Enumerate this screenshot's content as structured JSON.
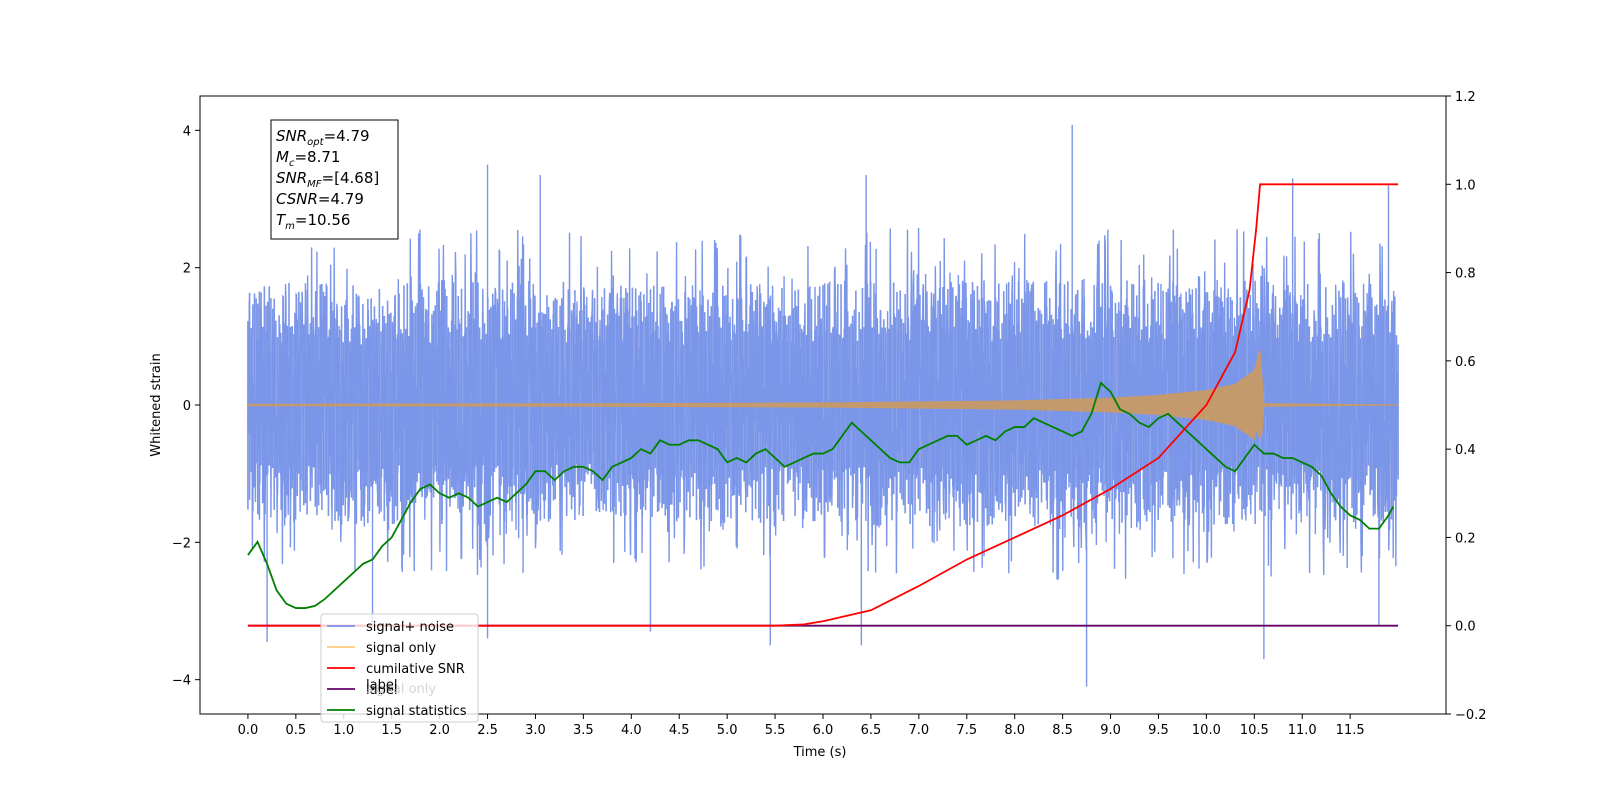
{
  "chart_data": {
    "type": "line",
    "xlabel": "Time (s)",
    "ylabel_left": "Whitened strain",
    "ylabel_right": "",
    "xlim": [
      -0.5,
      12.5
    ],
    "ylim_left": [
      -4.5,
      4.5
    ],
    "ylim_right": [
      -0.2,
      1.2
    ],
    "x_ticks": [
      0.0,
      0.5,
      1.0,
      1.5,
      2.0,
      2.5,
      3.0,
      3.5,
      4.0,
      4.5,
      5.0,
      5.5,
      6.0,
      6.5,
      7.0,
      7.5,
      8.0,
      8.5,
      9.0,
      9.5,
      10.0,
      10.5,
      11.0,
      11.5
    ],
    "x_tick_labels": [
      "0.0",
      "0.5",
      "1.0",
      "1.5",
      "2.0",
      "2.5",
      "3.0",
      "3.5",
      "4.0",
      "4.5",
      "5.0",
      "5.5",
      "6.0",
      "6.5",
      "7.0",
      "7.5",
      "8.0",
      "8.5",
      "9.0",
      "9.5",
      "10.0",
      "10.5",
      "11.0",
      "11.5"
    ],
    "y_left_ticks": [
      4,
      2,
      0,
      -2,
      -4
    ],
    "y_left_tick_labels": [
      "4",
      "2",
      "0",
      "−2",
      "−4"
    ],
    "y_right_ticks": [
      1.2,
      1.0,
      0.8,
      0.6,
      0.4,
      0.2,
      0.0,
      -0.2
    ],
    "y_right_tick_labels": [
      "1.2",
      "1.0",
      "0.8",
      "0.6",
      "0.4",
      "0.2",
      "0.0",
      "−0.2"
    ],
    "legend_position": "lower-left",
    "grid": false,
    "series": [
      {
        "name": "signal+ noise",
        "axis": "left",
        "color": "#7b96e8",
        "t_start": 0.0,
        "t_end": 12.0,
        "envelope_x": [
          0,
          1,
          2,
          3,
          4,
          5,
          6,
          7,
          8,
          9,
          10,
          10.5,
          11,
          12
        ],
        "envelope_high": [
          2.6,
          2.5,
          2.6,
          2.6,
          2.5,
          2.5,
          2.6,
          2.6,
          2.6,
          2.6,
          2.6,
          2.6,
          2.6,
          2.5
        ],
        "envelope_low": [
          -2.4,
          -2.5,
          -2.5,
          -2.5,
          -2.4,
          -2.5,
          -2.5,
          -2.6,
          -2.6,
          -2.6,
          -2.5,
          -2.5,
          -2.5,
          -2.5
        ],
        "spikes": [
          {
            "x": 0.2,
            "y": -3.45
          },
          {
            "x": 1.3,
            "y": -3.2
          },
          {
            "x": 2.5,
            "y": 3.5
          },
          {
            "x": 2.5,
            "y": -3.4
          },
          {
            "x": 3.05,
            "y": 3.35
          },
          {
            "x": 4.2,
            "y": -3.3
          },
          {
            "x": 5.45,
            "y": -3.5
          },
          {
            "x": 6.45,
            "y": 3.35
          },
          {
            "x": 6.4,
            "y": -3.5
          },
          {
            "x": 8.6,
            "y": 4.08
          },
          {
            "x": 8.75,
            "y": -4.1
          },
          {
            "x": 10.6,
            "y": -3.7
          },
          {
            "x": 10.9,
            "y": 3.3
          },
          {
            "x": 11.8,
            "y": -3.2
          },
          {
            "x": 11.9,
            "y": 3.2
          }
        ]
      },
      {
        "name": "signal only",
        "axis": "left",
        "color": "#ffb44a",
        "fill_color": "#c49a6c",
        "t_merger": 10.56,
        "amplitude_x": [
          0,
          2,
          4,
          6,
          7,
          8,
          9,
          9.5,
          10,
          10.3,
          10.5,
          10.56,
          10.6,
          12
        ],
        "amplitude": [
          0.01,
          0.015,
          0.02,
          0.03,
          0.045,
          0.06,
          0.1,
          0.14,
          0.21,
          0.3,
          0.5,
          0.8,
          0.02,
          0.0
        ]
      },
      {
        "name": "cumilative SNR",
        "axis": "right",
        "color": "#ff0000",
        "x": [
          0,
          5.5,
          5.8,
          6.0,
          6.5,
          7.0,
          7.5,
          8.0,
          8.5,
          9.0,
          9.5,
          10.0,
          10.3,
          10.45,
          10.52,
          10.56,
          12.0
        ],
        "y": [
          0.0,
          0.0,
          0.003,
          0.01,
          0.035,
          0.09,
          0.15,
          0.2,
          0.25,
          0.31,
          0.38,
          0.5,
          0.62,
          0.76,
          0.9,
          1.0,
          1.0
        ]
      },
      {
        "name": "label",
        "axis": "right",
        "color": "#660066",
        "x": [
          0,
          12.0
        ],
        "y": [
          0.0,
          0.0
        ]
      },
      {
        "name": "signal statistics",
        "axis": "right",
        "color": "#008000",
        "x": [
          0.0,
          0.1,
          0.2,
          0.3,
          0.4,
          0.5,
          0.6,
          0.7,
          0.8,
          0.9,
          1.0,
          1.1,
          1.2,
          1.3,
          1.4,
          1.5,
          1.6,
          1.7,
          1.8,
          1.9,
          2.0,
          2.1,
          2.2,
          2.3,
          2.4,
          2.5,
          2.6,
          2.7,
          2.8,
          2.9,
          3.0,
          3.1,
          3.2,
          3.3,
          3.4,
          3.5,
          3.6,
          3.7,
          3.8,
          3.9,
          4.0,
          4.1,
          4.2,
          4.3,
          4.4,
          4.5,
          4.6,
          4.7,
          4.8,
          4.9,
          5.0,
          5.1,
          5.2,
          5.3,
          5.4,
          5.5,
          5.6,
          5.7,
          5.8,
          5.9,
          6.0,
          6.1,
          6.2,
          6.3,
          6.4,
          6.5,
          6.6,
          6.7,
          6.8,
          6.9,
          7.0,
          7.1,
          7.2,
          7.3,
          7.4,
          7.5,
          7.6,
          7.7,
          7.8,
          7.9,
          8.0,
          8.1,
          8.2,
          8.3,
          8.4,
          8.5,
          8.6,
          8.7,
          8.8,
          8.9,
          9.0,
          9.1,
          9.2,
          9.3,
          9.4,
          9.5,
          9.6,
          9.7,
          9.8,
          9.9,
          10.0,
          10.1,
          10.2,
          10.3,
          10.4,
          10.5,
          10.6,
          10.7,
          10.8,
          10.9,
          11.0,
          11.1,
          11.2,
          11.3,
          11.4,
          11.5,
          11.6,
          11.7,
          11.8,
          11.9,
          11.95
        ],
        "y": [
          0.16,
          0.19,
          0.14,
          0.08,
          0.05,
          0.04,
          0.04,
          0.045,
          0.06,
          0.08,
          0.1,
          0.12,
          0.14,
          0.15,
          0.18,
          0.2,
          0.24,
          0.28,
          0.31,
          0.32,
          0.3,
          0.29,
          0.3,
          0.29,
          0.27,
          0.28,
          0.29,
          0.28,
          0.3,
          0.32,
          0.35,
          0.35,
          0.33,
          0.35,
          0.36,
          0.36,
          0.35,
          0.33,
          0.36,
          0.37,
          0.38,
          0.4,
          0.39,
          0.42,
          0.41,
          0.41,
          0.42,
          0.42,
          0.41,
          0.4,
          0.37,
          0.38,
          0.37,
          0.39,
          0.4,
          0.38,
          0.36,
          0.37,
          0.38,
          0.39,
          0.39,
          0.4,
          0.43,
          0.46,
          0.44,
          0.42,
          0.4,
          0.38,
          0.37,
          0.37,
          0.4,
          0.41,
          0.42,
          0.43,
          0.43,
          0.41,
          0.42,
          0.43,
          0.42,
          0.44,
          0.45,
          0.45,
          0.47,
          0.46,
          0.45,
          0.44,
          0.43,
          0.44,
          0.48,
          0.55,
          0.53,
          0.49,
          0.48,
          0.46,
          0.45,
          0.47,
          0.48,
          0.46,
          0.44,
          0.42,
          0.4,
          0.38,
          0.36,
          0.35,
          0.38,
          0.41,
          0.39,
          0.39,
          0.38,
          0.38,
          0.37,
          0.36,
          0.34,
          0.3,
          0.27,
          0.25,
          0.24,
          0.22,
          0.22,
          0.25,
          0.27
        ]
      }
    ],
    "legend": [
      "signal+ noise",
      "signal only",
      "cumilative SNR",
      "label",
      "signal statistics"
    ],
    "legend_overlay_text": "signal only",
    "info_box": [
      {
        "name": "SNR",
        "sub": "opt",
        "value": "=4.79"
      },
      {
        "name": "M",
        "sub": "c",
        "value": "=8.71"
      },
      {
        "name": "SNR",
        "sub": "MF",
        "value": "=[4.68]"
      },
      {
        "name": "CSNR",
        "sub": "",
        "value": "=4.79"
      },
      {
        "name": "T",
        "sub": "m",
        "value": "=10.56"
      }
    ]
  }
}
